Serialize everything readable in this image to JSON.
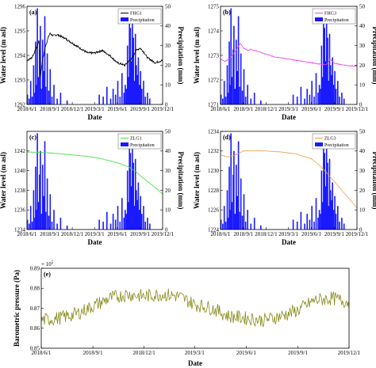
{
  "chart_data": [
    {
      "panel": "(a)",
      "type": "line+bar",
      "xlabel": "Date",
      "ylabel": "Water level (m asl)",
      "y2label": "Precipitation (mm)",
      "x_ticks": [
        "2018/6/1",
        "2018/9/1",
        "2018/12/1",
        "2019/3/1",
        "2019/6/1",
        "2019/9/1",
        "2019/12/1"
      ],
      "ylim": [
        1292,
        1296
      ],
      "y_ticks": [
        1292,
        1293,
        1294,
        1295,
        1296
      ],
      "y2lim": [
        0,
        50
      ],
      "y2_ticks": [
        0,
        10,
        20,
        30,
        40,
        50
      ],
      "legend": [
        "FHG1",
        "Precipitation"
      ],
      "line_color": "#000000",
      "series": [
        {
          "name": "FHG1",
          "x": [
            "2018/6/1",
            "2018/6/20",
            "2018/7/5",
            "2018/7/20",
            "2018/7/25",
            "2018/8/1",
            "2018/8/15",
            "2018/9/1",
            "2018/9/15",
            "2018/10/1",
            "2018/11/1",
            "2018/12/1",
            "2019/1/1",
            "2019/2/1",
            "2019/3/1",
            "2019/4/1",
            "2019/5/1",
            "2019/6/1",
            "2019/7/1",
            "2019/8/1",
            "2019/8/15",
            "2019/9/1",
            "2019/9/15",
            "2019/10/1",
            "2019/11/1",
            "2019/12/1"
          ],
          "values": [
            1293.8,
            1293.9,
            1294.2,
            1294.6,
            1293.1,
            1293.7,
            1294.4,
            1294.9,
            1294.8,
            1294.85,
            1294.7,
            1294.5,
            1294.3,
            1294.1,
            1294.1,
            1294.2,
            1294.0,
            1293.7,
            1293.6,
            1293.9,
            1294.2,
            1294.3,
            1294.15,
            1293.9,
            1293.7,
            1293.8
          ]
        }
      ]
    },
    {
      "panel": "(b)",
      "type": "line+bar",
      "xlabel": "Date",
      "ylabel": "Water level (m asl)",
      "y2label": "Precipitation (mm)",
      "x_ticks": [
        "2018/6/1",
        "2018/9/1",
        "2018/12/1",
        "2019/3/1",
        "2019/6/1",
        "2019/9/1",
        "2019/12/1"
      ],
      "ylim": [
        1271,
        1275
      ],
      "y_ticks": [
        1271,
        1272,
        1273,
        1274,
        1275
      ],
      "y2lim": [
        0,
        50
      ],
      "y2_ticks": [
        0,
        10,
        20,
        30,
        40,
        50
      ],
      "legend": [
        "FHG3",
        "Precipitation"
      ],
      "line_color": "#ee44ee",
      "series": [
        {
          "name": "FHG3",
          "x": [
            "2018/6/1",
            "2018/6/20",
            "2018/7/10",
            "2018/8/1",
            "2018/8/20",
            "2018/9/1",
            "2018/9/20",
            "2018/10/1",
            "2018/11/1",
            "2018/12/1",
            "2019/1/1",
            "2019/2/1",
            "2019/3/1",
            "2019/4/1",
            "2019/5/1",
            "2019/6/1",
            "2019/7/1",
            "2019/8/1",
            "2019/8/15",
            "2019/9/1",
            "2019/10/1",
            "2019/11/1",
            "2019/12/1"
          ],
          "values": [
            1272.85,
            1272.75,
            1272.9,
            1273.2,
            1273.5,
            1273.3,
            1273.2,
            1273.25,
            1273.15,
            1273.05,
            1272.95,
            1272.9,
            1272.85,
            1272.8,
            1272.75,
            1272.7,
            1272.65,
            1272.62,
            1272.85,
            1272.68,
            1272.62,
            1272.58,
            1272.55
          ]
        }
      ]
    },
    {
      "panel": "(c)",
      "type": "line+bar",
      "xlabel": "Date",
      "ylabel": "Water level (m asl)",
      "y2label": "Precipitation (mm)",
      "x_ticks": [
        "2018/6/1",
        "2018/9/1",
        "2018/12/1",
        "2019/3/1",
        "2019/6/1",
        "2019/9/1",
        "2019/12/1"
      ],
      "ylim": [
        1234,
        1244
      ],
      "y_ticks": [
        1234,
        1236,
        1238,
        1240,
        1242
      ],
      "y2lim": [
        0,
        50
      ],
      "y2_ticks": [
        0,
        10,
        20,
        30,
        40,
        50
      ],
      "legend": [
        "ZLG1",
        "Precipitation"
      ],
      "line_color": "#44dd44",
      "series": [
        {
          "name": "ZLG1",
          "x": [
            "2018/6/1",
            "2018/8/1",
            "2018/10/1",
            "2018/12/1",
            "2019/2/1",
            "2019/4/1",
            "2019/6/1",
            "2019/7/15",
            "2019/8/15",
            "2019/9/1",
            "2019/10/1",
            "2019/11/1",
            "2019/12/1"
          ],
          "values": [
            1241.9,
            1241.85,
            1241.75,
            1241.6,
            1241.45,
            1241.2,
            1240.8,
            1240.4,
            1239.9,
            1239.5,
            1238.9,
            1238.3,
            1237.6
          ]
        }
      ]
    },
    {
      "panel": "(d)",
      "type": "line+bar",
      "xlabel": "Date",
      "ylabel": "Water level (m asl)",
      "y2label": "Precipitation (mm)",
      "x_ticks": [
        "2018/6/1",
        "2018/9/1",
        "2018/12/1",
        "2019/3/1",
        "2019/6/1",
        "2019/9/1",
        "2019/12/1"
      ],
      "ylim": [
        1224,
        1234
      ],
      "y_ticks": [
        1224,
        1226,
        1228,
        1230,
        1232,
        1234
      ],
      "y2lim": [
        0,
        50
      ],
      "y2_ticks": [
        0,
        10,
        20,
        30,
        40,
        50
      ],
      "legend": [
        "ZLG3",
        "Precipitation"
      ],
      "line_color": "#f0a050",
      "series": [
        {
          "name": "ZLG3",
          "x": [
            "2018/6/1",
            "2018/7/1",
            "2018/8/1",
            "2018/9/1",
            "2018/10/1",
            "2018/12/1",
            "2019/2/1",
            "2019/4/1",
            "2019/6/1",
            "2019/7/1",
            "2019/8/1",
            "2019/9/1",
            "2019/10/1",
            "2019/11/1",
            "2019/12/1"
          ],
          "values": [
            1231.6,
            1231.4,
            1231.6,
            1232.0,
            1232.05,
            1232.0,
            1231.9,
            1231.7,
            1231.2,
            1230.6,
            1229.8,
            1228.9,
            1228.0,
            1227.1,
            1226.2
          ]
        }
      ]
    },
    {
      "panel": "(e)",
      "type": "line",
      "xlabel": "Date",
      "ylabel": "Barometric pressure (Pa)",
      "multiplier": "× 10",
      "multiplier_exp": "5",
      "x_ticks": [
        "2018/6/1",
        "2018/9/1",
        "2018/12/1",
        "2019/3/1",
        "2019/6/1",
        "2019/9/1",
        "2019/12/1"
      ],
      "ylim": [
        0.85,
        0.89
      ],
      "y_ticks": [
        "0.85",
        "0.86",
        "0.87",
        "0.88",
        "0.89"
      ],
      "line_color": "#8a8a1a",
      "series": [
        {
          "name": "",
          "x": [
            "2018/6/1",
            "2018/7/1",
            "2018/8/1",
            "2018/9/1",
            "2018/10/1",
            "2018/11/1",
            "2018/12/1",
            "2019/1/1",
            "2019/2/1",
            "2019/3/1",
            "2019/4/1",
            "2019/5/1",
            "2019/6/1",
            "2019/7/1",
            "2019/8/1",
            "2019/9/1",
            "2019/10/1",
            "2019/11/1",
            "2019/12/1"
          ],
          "values": [
            0.864,
            0.865,
            0.867,
            0.871,
            0.875,
            0.877,
            0.876,
            0.877,
            0.876,
            0.872,
            0.87,
            0.866,
            0.865,
            0.864,
            0.866,
            0.869,
            0.874,
            0.875,
            0.873
          ]
        }
      ]
    }
  ],
  "precipitation": {
    "name": "Precipitation",
    "color": "#1a1aff",
    "x": [
      "2018/6/3",
      "2018/6/10",
      "2018/6/16",
      "2018/6/22",
      "2018/6/28",
      "2018/7/3",
      "2018/7/6",
      "2018/7/10",
      "2018/7/13",
      "2018/7/17",
      "2018/7/22",
      "2018/7/25",
      "2018/7/29",
      "2018/8/3",
      "2018/8/8",
      "2018/8/12",
      "2018/8/16",
      "2018/8/22",
      "2018/8/28",
      "2018/9/3",
      "2018/9/10",
      "2018/9/18",
      "2018/10/1",
      "2018/10/15",
      "2018/11/10",
      "2019/3/20",
      "2019/4/5",
      "2019/4/20",
      "2019/5/5",
      "2019/5/15",
      "2019/5/25",
      "2019/6/3",
      "2019/6/12",
      "2019/6/20",
      "2019/6/28",
      "2019/7/3",
      "2019/7/8",
      "2019/7/12",
      "2019/7/16",
      "2019/7/20",
      "2019/7/24",
      "2019/7/28",
      "2019/8/1",
      "2019/8/5",
      "2019/8/9",
      "2019/8/13",
      "2019/8/17",
      "2019/8/21",
      "2019/8/25",
      "2019/8/29",
      "2019/9/3",
      "2019/9/8",
      "2019/9/15",
      "2019/9/22",
      "2019/10/1",
      "2019/10/10"
    ],
    "values": [
      5,
      3,
      12,
      4,
      20,
      6,
      32,
      10,
      49,
      14,
      28,
      40,
      8,
      33,
      17,
      45,
      9,
      26,
      7,
      18,
      4,
      10,
      3,
      6,
      2,
      5,
      4,
      9,
      3,
      8,
      5,
      12,
      4,
      16,
      6,
      10,
      8,
      30,
      14,
      48,
      39,
      22,
      44,
      34,
      12,
      36,
      20,
      15,
      24,
      10,
      17,
      8,
      12,
      4,
      6,
      3
    ]
  }
}
